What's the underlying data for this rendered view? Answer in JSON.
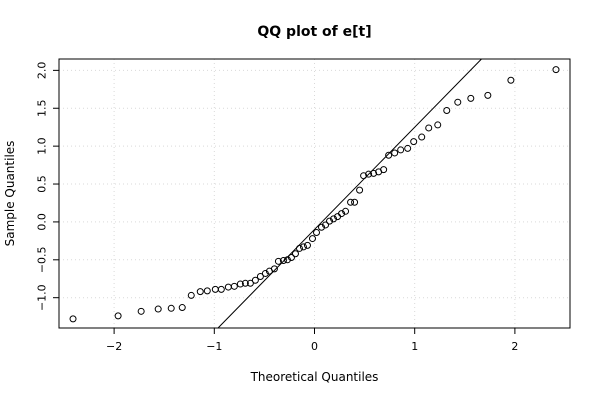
{
  "chart_data": {
    "type": "scatter",
    "title": "QQ plot of e[t]",
    "xlabel": "Theoretical Quantiles",
    "ylabel": "Sample Quantiles",
    "xlim": [
      -2.55,
      2.55
    ],
    "ylim": [
      -1.4,
      2.15
    ],
    "xticks": [
      -2,
      -1,
      0,
      1,
      2
    ],
    "xtick_labels": [
      "−2",
      "−1",
      "0",
      "1",
      "2"
    ],
    "yticks": [
      -1.0,
      -0.5,
      0.0,
      0.5,
      1.0,
      1.5,
      2.0
    ],
    "ytick_labels": [
      "−1.0",
      "−0.5",
      "0.0",
      "0.5",
      "1.0",
      "1.5",
      "2.0"
    ],
    "grid": true,
    "reference_line": {
      "slope": 1.35,
      "intercept": -0.1
    },
    "colors": {
      "points": "#000000",
      "line": "#000000",
      "grid": "#d9d9d9",
      "frame": "#000000"
    },
    "x": [
      -2.41,
      -1.96,
      -1.73,
      -1.56,
      -1.43,
      -1.32,
      -1.23,
      -1.14,
      -1.07,
      -0.99,
      -0.93,
      -0.86,
      -0.8,
      -0.74,
      -0.69,
      -0.64,
      -0.59,
      -0.54,
      -0.49,
      -0.45,
      -0.4,
      -0.36,
      -0.31,
      -0.27,
      -0.23,
      -0.19,
      -0.15,
      -0.11,
      -0.07,
      -0.02,
      0.02,
      0.07,
      0.11,
      0.15,
      0.19,
      0.23,
      0.27,
      0.31,
      0.36,
      0.4,
      0.45,
      0.49,
      0.54,
      0.59,
      0.64,
      0.69,
      0.74,
      0.8,
      0.86,
      0.93,
      0.99,
      1.07,
      1.14,
      1.23,
      1.32,
      1.43,
      1.56,
      1.73,
      1.96,
      2.41
    ],
    "y": [
      -1.28,
      -1.24,
      -1.18,
      -1.15,
      -1.14,
      -1.13,
      -0.97,
      -0.92,
      -0.91,
      -0.89,
      -0.89,
      -0.86,
      -0.85,
      -0.82,
      -0.81,
      -0.81,
      -0.77,
      -0.72,
      -0.68,
      -0.65,
      -0.62,
      -0.52,
      -0.51,
      -0.5,
      -0.47,
      -0.42,
      -0.35,
      -0.33,
      -0.31,
      -0.22,
      -0.14,
      -0.07,
      -0.04,
      0.01,
      0.04,
      0.07,
      0.11,
      0.14,
      0.26,
      0.26,
      0.42,
      0.61,
      0.63,
      0.64,
      0.66,
      0.69,
      0.88,
      0.91,
      0.95,
      0.97,
      1.06,
      1.12,
      1.24,
      1.28,
      1.47,
      1.58,
      1.63,
      1.67,
      1.87,
      2.01
    ]
  }
}
